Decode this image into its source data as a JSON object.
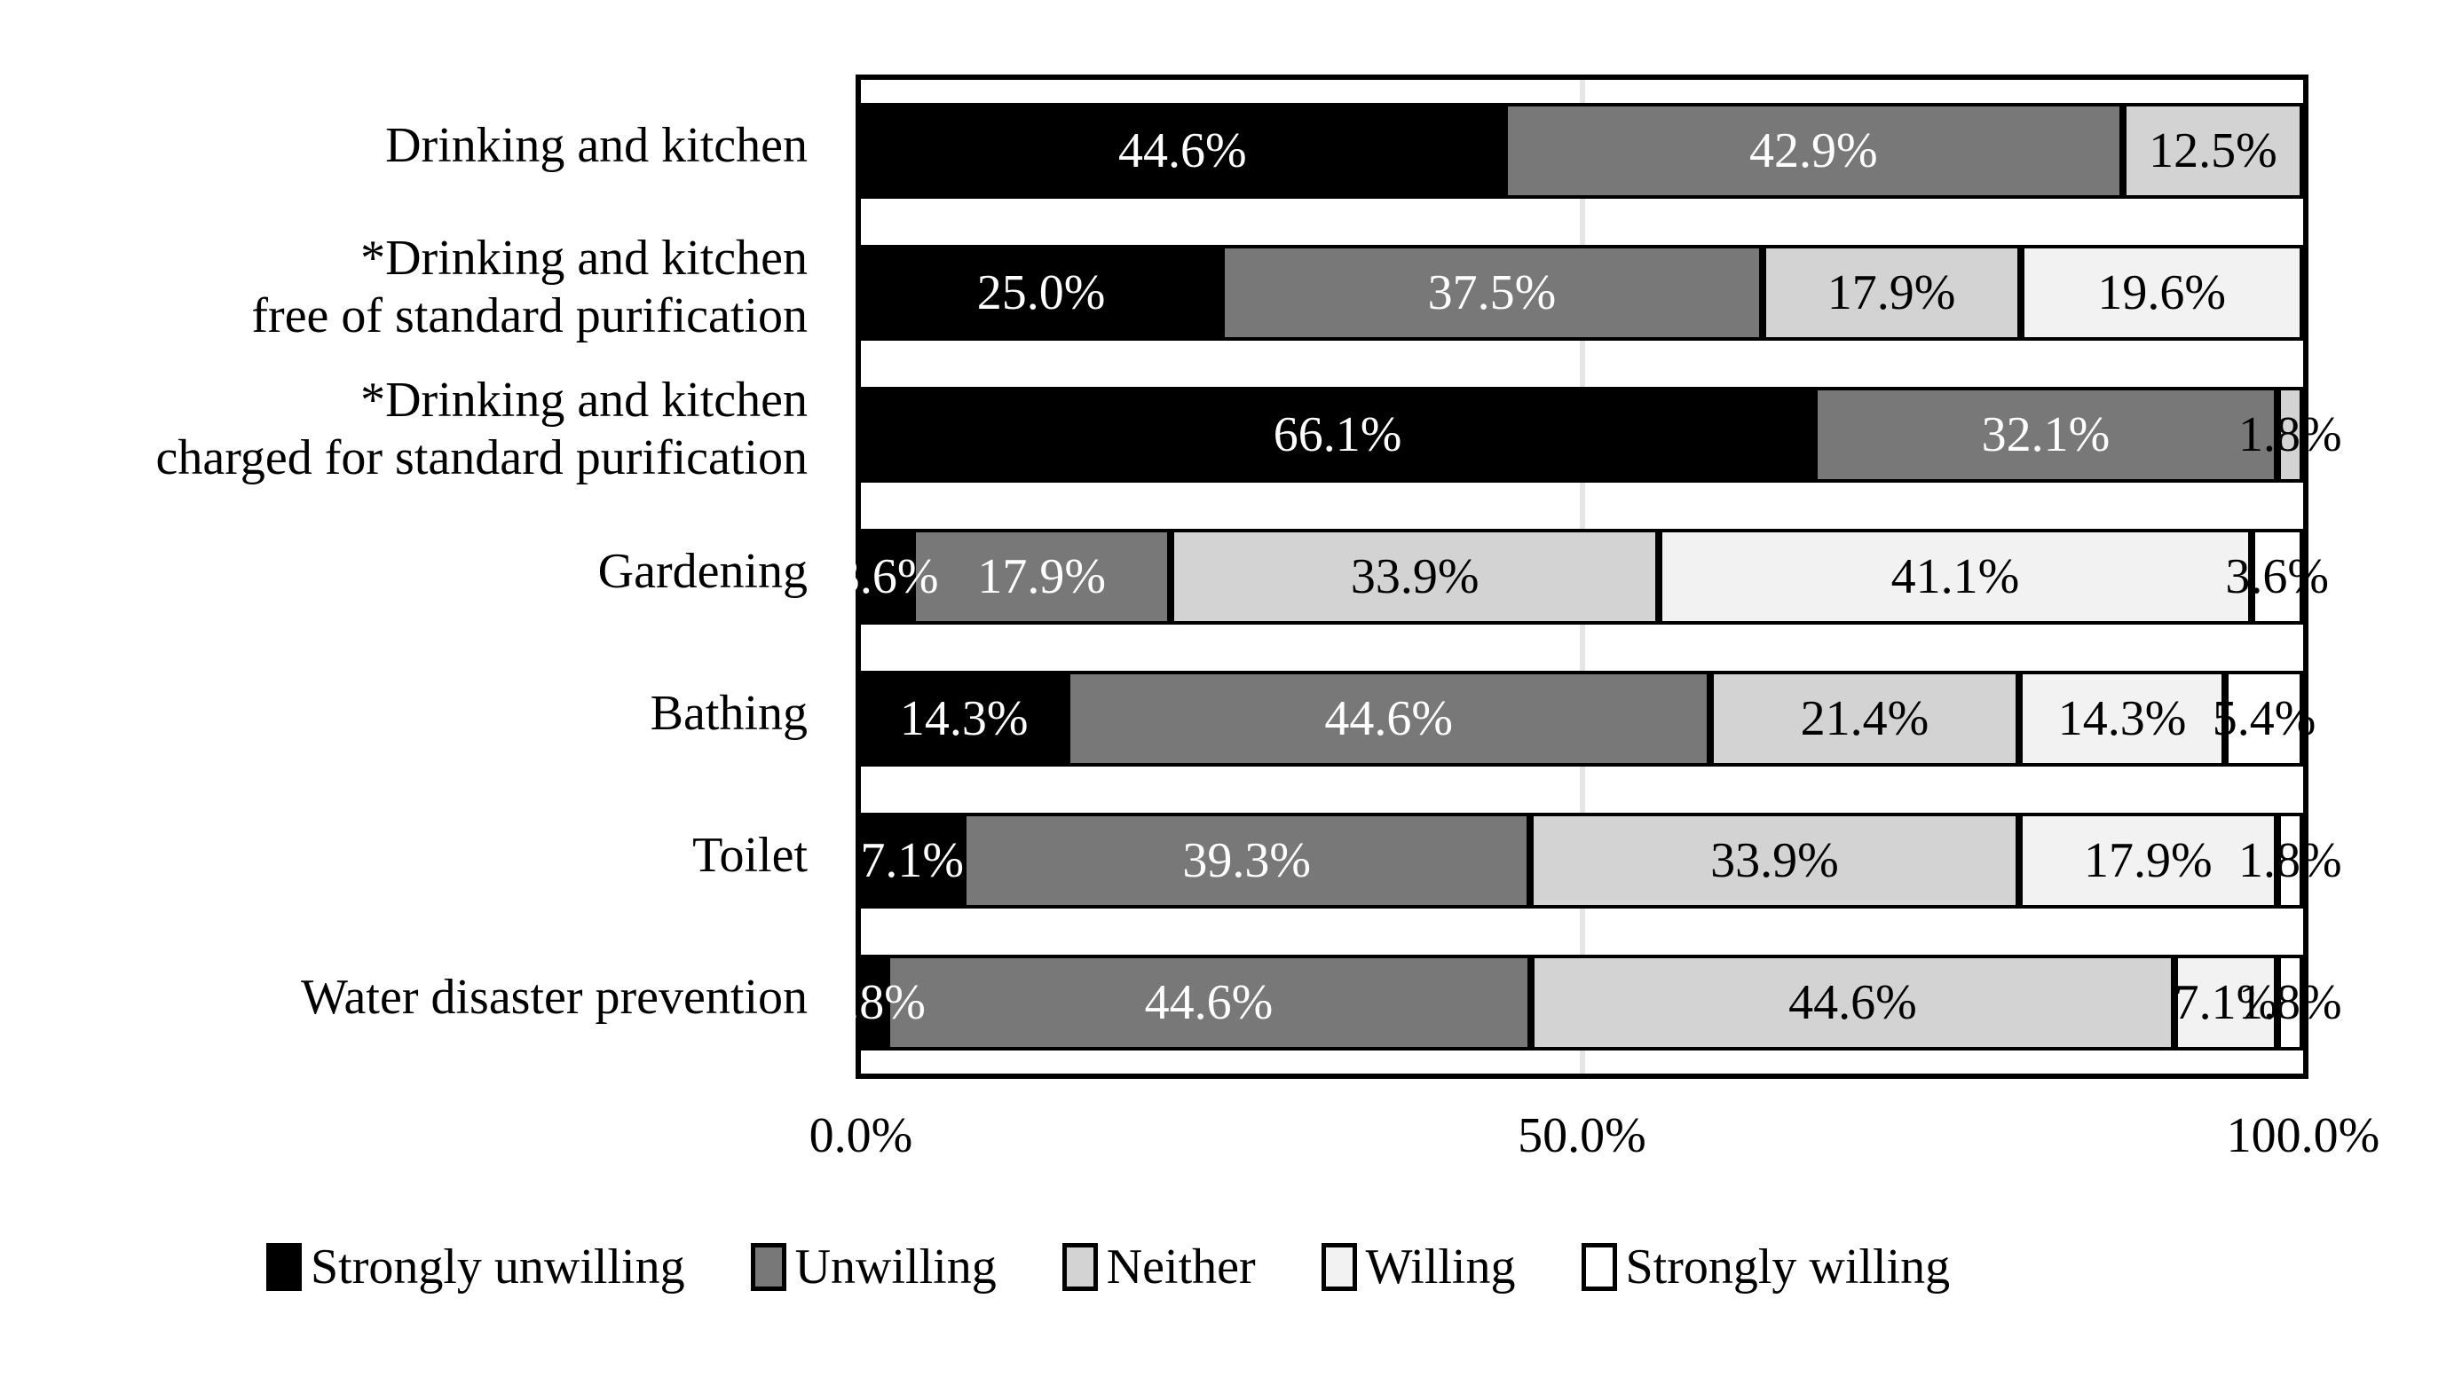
{
  "figure": {
    "background": "#ffffff",
    "plot_border_color": "#000000",
    "gridline_color": "#e6e6e6"
  },
  "chart_data": {
    "type": "bar",
    "variant": "horizontal-stacked",
    "title": "",
    "xlabel": "",
    "ylabel": "",
    "categories": [
      [
        "Drinking and kitchen"
      ],
      [
        "*Drinking and kitchen",
        "free of standard purification"
      ],
      [
        "*Drinking and kitchen",
        "charged for standard purification"
      ],
      [
        "Gardening"
      ],
      [
        "Bathing"
      ],
      [
        "Toilet"
      ],
      [
        "Water disaster prevention"
      ]
    ],
    "series": [
      {
        "name": "Strongly unwilling",
        "color": "#000000",
        "label_color": "#ffffff",
        "values": [
          44.6,
          25.0,
          66.1,
          3.6,
          14.3,
          7.1,
          1.8
        ]
      },
      {
        "name": "Unwilling",
        "color": "#787878",
        "label_color": "#ffffff",
        "values": [
          42.9,
          37.5,
          32.1,
          17.9,
          44.6,
          39.3,
          44.6
        ]
      },
      {
        "name": "Neither",
        "color": "#d3d3d3",
        "label_color": "#000000",
        "values": [
          12.5,
          17.9,
          1.8,
          33.9,
          21.4,
          33.9,
          44.6
        ]
      },
      {
        "name": "Willing",
        "color": "#f2f2f2",
        "label_color": "#000000",
        "values": [
          0,
          19.6,
          0,
          41.1,
          14.3,
          17.9,
          7.1
        ]
      },
      {
        "name": "Strongly willing",
        "color": "#ffffff",
        "label_color": "#000000",
        "values": [
          0,
          0,
          0,
          3.6,
          5.4,
          1.8,
          1.8
        ]
      }
    ],
    "data_label_format": "one_decimal_percent",
    "x_axis": {
      "min": 0,
      "max": 100,
      "tick_labels": [
        "0.0%",
        "50.0%",
        "100.0%"
      ],
      "tick_positions": [
        0,
        50,
        100
      ],
      "gridline_at": 50
    },
    "legend": {
      "position": "bottom",
      "entries": [
        "Strongly unwilling",
        "Unwilling",
        "Neither",
        "Willing",
        "Strongly willing"
      ]
    }
  }
}
